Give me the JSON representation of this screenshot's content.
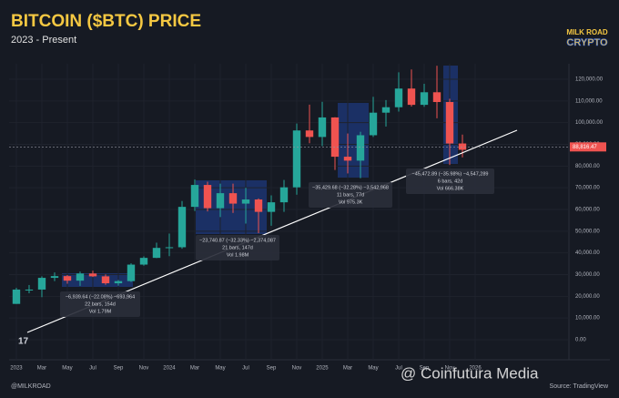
{
  "header": {
    "title": "BITCOIN ($BTC) PRICE",
    "subtitle": "2023 - Present",
    "logo_top": "MILK ROAD",
    "logo_bottom": "CRYPTO"
  },
  "chart_data": {
    "type": "candlestick",
    "open": [
      16500,
      23100,
      23100,
      28500,
      29300,
      27200,
      30500,
      29200,
      26000,
      27000,
      34600,
      37700,
      42300,
      42600,
      61200,
      71300,
      60600,
      67500,
      62700,
      64600,
      58900,
      63300,
      70200,
      96400,
      93400,
      102400,
      84300,
      82500,
      94200,
      104600,
      107100,
      115700,
      108200,
      114000,
      109500,
      90400
    ],
    "high": [
      23900,
      25200,
      29200,
      31000,
      29800,
      31400,
      31800,
      30100,
      27500,
      35200,
      38400,
      44700,
      48900,
      63900,
      73800,
      72800,
      71900,
      71900,
      70000,
      65100,
      66500,
      73600,
      99600,
      108300,
      109600,
      102500,
      95000,
      95800,
      111900,
      110400,
      123200,
      124500,
      117900,
      126200,
      111000,
      94500
    ],
    "low": [
      16500,
      21400,
      19600,
      27000,
      25800,
      24800,
      28900,
      25300,
      24900,
      26600,
      34100,
      37600,
      38500,
      41900,
      59300,
      59100,
      56500,
      58400,
      53500,
      49100,
      52500,
      58900,
      66800,
      90500,
      89200,
      78200,
      76600,
      74400,
      93400,
      98200,
      105100,
      107400,
      107300,
      102000,
      80500,
      84000
    ],
    "close": [
      23100,
      23100,
      28500,
      29300,
      27200,
      30500,
      29200,
      26000,
      27000,
      34600,
      37700,
      42300,
      42600,
      61200,
      71300,
      60600,
      67500,
      62700,
      64600,
      58900,
      63300,
      70200,
      96400,
      93400,
      102400,
      84300,
      82500,
      94200,
      104600,
      107100,
      115700,
      108200,
      114000,
      109500,
      90400,
      87500
    ],
    "up_color": "#26a69a",
    "down_color": "#ef5350",
    "xlim": [
      -0.57,
      43
    ],
    "xticks": [
      {
        "value": 0,
        "label": "2023"
      },
      {
        "value": 2,
        "label": "Mar"
      },
      {
        "value": 4,
        "label": "May"
      },
      {
        "value": 6,
        "label": "Jul"
      },
      {
        "value": 8,
        "label": "Sep"
      },
      {
        "value": 10,
        "label": "Nov"
      },
      {
        "value": 12,
        "label": "2024"
      },
      {
        "value": 14,
        "label": "Mar"
      },
      {
        "value": 16,
        "label": "May"
      },
      {
        "value": 18,
        "label": "Jul"
      },
      {
        "value": 20,
        "label": "Sep"
      },
      {
        "value": 22,
        "label": "Nov"
      },
      {
        "value": 24,
        "label": "2025"
      },
      {
        "value": 26,
        "label": "Mar"
      },
      {
        "value": 28,
        "label": "May"
      },
      {
        "value": 30,
        "label": "Jul"
      },
      {
        "value": 32,
        "label": "Sep"
      },
      {
        "value": 34,
        "label": "Nov"
      },
      {
        "value": 36,
        "label": "2026"
      }
    ],
    "ylim": [
      -9230,
      127130
    ],
    "yticks": [
      {
        "value": 0,
        "label": "0.00"
      },
      {
        "value": 10000,
        "label": "10,000.00"
      },
      {
        "value": 20000,
        "label": "20,000.00"
      },
      {
        "value": 30000,
        "label": "30,000.00"
      },
      {
        "value": 40000,
        "label": "40,000.00"
      },
      {
        "value": 50000,
        "label": "50,000.00"
      },
      {
        "value": 60000,
        "label": "60,000.00"
      },
      {
        "value": 70000,
        "label": "70,000.00"
      },
      {
        "value": 80000,
        "label": "80,000.00"
      },
      {
        "value": 90000,
        "label": "90,000.00"
      },
      {
        "value": 100000,
        "label": "100,000.00"
      },
      {
        "value": 110000,
        "label": "110,000.00"
      },
      {
        "value": 120000,
        "label": "120,000.00"
      }
    ],
    "last_price": {
      "value": 88816.47,
      "label": "88,816.47"
    },
    "annotations": [
      [
        "−6,939.64 (−22.08%) −693,964",
        "22 bars, 154d",
        "Vol 1.79M"
      ],
      [
        "−23,740.87 (−32.33%) −2,374,087",
        "21 bars, 147d",
        "Vol 1.98M"
      ],
      [
        "−35,429.68 (−32.28%) −3,542,968",
        "11 bars, 77d",
        "Vol 975.3K"
      ],
      [
        "−45,472.89 (−35.98%) −4,547,289",
        "6 bars, 42d",
        "Vol 666.38K"
      ]
    ]
  },
  "footer": {
    "handle": "@MILKROAD",
    "source": "Source: TradingView",
    "watermark": "@ Coinfutura Media"
  }
}
